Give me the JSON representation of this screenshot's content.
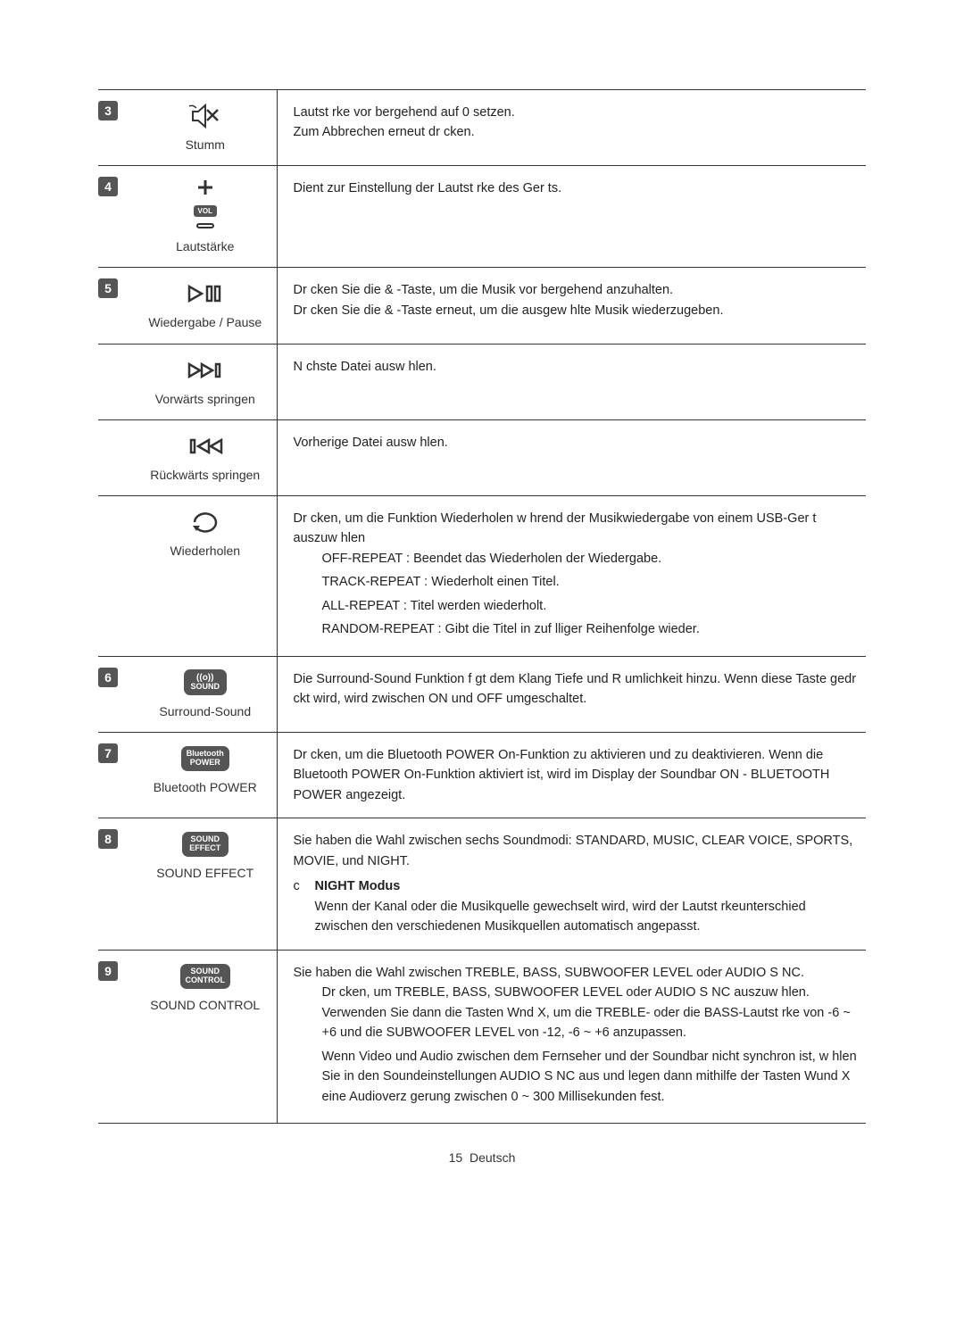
{
  "rows": [
    {
      "num": "3",
      "icon": "mute",
      "label": "Stumm",
      "desc_lines": [
        "Lautst rke vor bergehend auf 0 setzen.",
        "Zum Abbrechen erneut dr cken."
      ]
    },
    {
      "num": "4",
      "icon": "volume",
      "label": "Lautstärke",
      "desc_lines": [
        "Dient zur Einstellung der Lautst rke des Ger ts."
      ]
    },
    {
      "num": "5",
      "icon": "playpause",
      "label": "Wiedergabe / Pause",
      "desc_lines": [
        "Dr cken Sie die & -Taste, um die Musik vor bergehend anzuhalten.",
        "Dr cken Sie die & -Taste erneut, um die ausgew hlte Musik wiederzugeben."
      ]
    },
    {
      "num": "",
      "icon": "skipfwd",
      "label": "Vorwärts springen",
      "desc_lines": [
        "N chste Datei ausw hlen."
      ]
    },
    {
      "num": "",
      "icon": "skipback",
      "label": "Rückwärts springen",
      "desc_lines": [
        "Vorherige Datei ausw hlen."
      ]
    },
    {
      "num": "",
      "icon": "repeat",
      "label": "Wiederholen",
      "desc_lines": [
        "Dr cken, um die Funktion Wiederholen w hrend der Musikwiedergabe von einem USB-Ger t auszuw hlen"
      ],
      "sub_items": [
        {
          "bold": "OFF-REPEAT",
          "rest": " : Beendet das Wiederholen der Wiedergabe."
        },
        {
          "bold": "TRACK-REPEAT",
          "rest": " : Wiederholt einen Titel."
        },
        {
          "bold": "ALL-REPEAT",
          "rest": " : Titel werden wiederholt."
        },
        {
          "bold": "RANDOM-REPEAT",
          "rest": " : Gibt die Titel in zuf lliger Reihenfolge wieder."
        }
      ]
    },
    {
      "num": "6",
      "icon": "surround",
      "btn_text": "SOUND",
      "label": "Surround-Sound",
      "desc_lines": [
        "Die Surround-Sound Funktion f gt dem Klang Tiefe und R umlichkeit hinzu. Wenn diese Taste gedr ckt wird, wird zwischen ON und OFF umgeschaltet."
      ]
    },
    {
      "num": "7",
      "icon": "btn",
      "btn_text": "Bluetooth POWER",
      "label": "Bluetooth POWER",
      "desc_lines": [
        "Dr cken, um die Bluetooth POWER On-Funktion zu aktivieren und zu deaktivieren. Wenn die Bluetooth POWER On-Funktion aktiviert ist, wird im Display der Soundbar ON - BLUETOOTH POWER angezeigt."
      ]
    },
    {
      "num": "8",
      "icon": "btn",
      "btn_text": "SOUND EFFECT",
      "label": "SOUND EFFECT",
      "desc_lines": [
        "Sie haben die Wahl zwischen sechs Soundmodi: STANDARD, MUSIC, CLEAR VOICE, SPORTS, MOVIE, und NIGHT."
      ],
      "note": {
        "marker": "c",
        "title": "NIGHT Modus",
        "body": "Wenn der Kanal oder die Musikquelle gewechselt wird, wird der Lautst rkeunterschied zwischen den verschiedenen Musikquellen automatisch angepasst."
      }
    },
    {
      "num": "9",
      "icon": "btn",
      "btn_text": "SOUND CONTROL",
      "label": "SOUND CONTROL",
      "desc_lines": [
        "Sie haben die Wahl zwischen TREBLE, BASS, SUBWOOFER LEVEL oder AUDIO S NC."
      ],
      "sub_items": [
        {
          "bold": "",
          "rest": "Dr cken, um TREBLE, BASS, SUBWOOFER LEVEL oder AUDIO S NC auszuw hlen. Verwenden Sie dann die Tasten Wnd X, um die TREBLE- oder die BASS-Lautst rke von -6 ~ +6 und die SUBWOOFER LEVEL von -12, -6 ~ +6 anzupassen."
        },
        {
          "bold": "",
          "rest": "Wenn Video und Audio zwischen dem Fernseher und der Soundbar nicht synchron ist, w hlen Sie in den Soundeinstellungen AUDIO S NC aus und legen dann mithilfe der Tasten Wund X eine Audioverz gerung zwischen 0 ~ 300 Millisekunden fest."
        }
      ]
    }
  ],
  "footer": {
    "page": "15",
    "lang": "Deutsch"
  }
}
